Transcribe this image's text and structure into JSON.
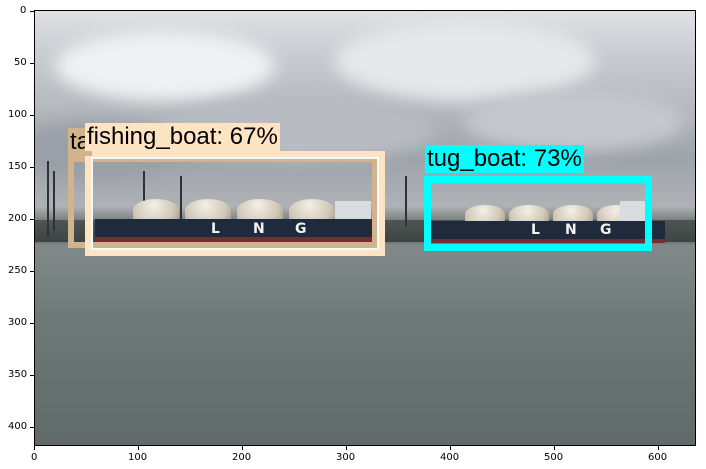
{
  "axes": {
    "x_ticks": [
      "0",
      "100",
      "200",
      "300",
      "400",
      "500",
      "600"
    ],
    "y_ticks": [
      "0",
      "50",
      "100",
      "150",
      "200",
      "250",
      "300",
      "350",
      "400"
    ]
  },
  "detections": [
    {
      "label_text": "ta",
      "color": "#d2b48c"
    },
    {
      "label_text": "fishing_boat: 67%",
      "color": "#ffe4c4"
    },
    {
      "label_text": "tug_boat: 73%",
      "color": "#00ffff"
    }
  ],
  "ships": [
    {
      "letters": [
        "L",
        "N",
        "G"
      ]
    },
    {
      "letters": [
        "L",
        "N",
        "G"
      ]
    }
  ]
}
